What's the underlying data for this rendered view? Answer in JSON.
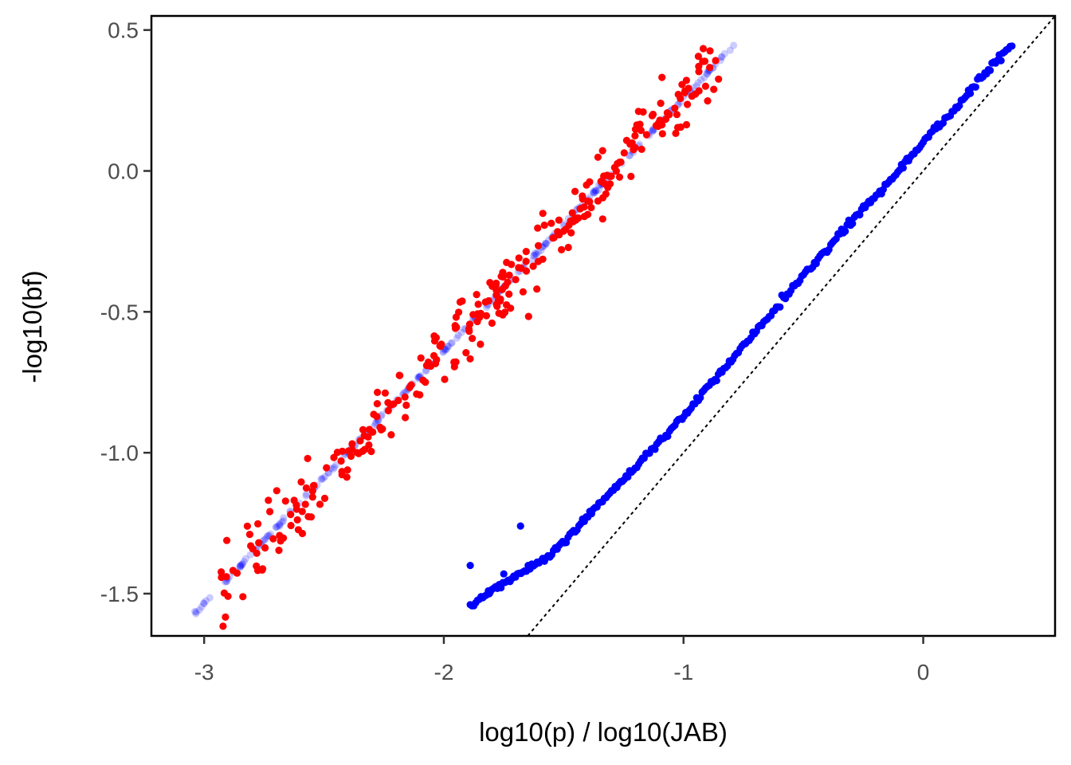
{
  "chart_data": {
    "type": "scatter",
    "xlabel": "log10(p) / log10(JAB)",
    "ylabel": "-log10(bf)",
    "xlim": [
      -3.22,
      0.55
    ],
    "ylim": [
      -1.65,
      0.55
    ],
    "xticks": [
      -3,
      -2,
      -1,
      0
    ],
    "xtick_labels": [
      "-3",
      "-2",
      "-1",
      "0"
    ],
    "yticks": [
      -1.5,
      -1.0,
      -0.5,
      0.0,
      0.5
    ],
    "ytick_labels": [
      "-1.5",
      "-1.0",
      "-0.5",
      "0.0",
      "0.5"
    ],
    "grid": false,
    "legend": "none",
    "reference_line": {
      "kind": "y = x",
      "style": "dotted",
      "color": "#000000"
    },
    "series": [
      {
        "id": "red",
        "color": "#ff0000",
        "opacity": 1.0,
        "model": {
          "type": "linear_with_noise",
          "slope": 0.897,
          "intercept": 1.155,
          "x_range": [
            -2.93,
            -0.84
          ],
          "count": 300,
          "noise_sd_y": 0.06,
          "seed": 7
        }
      },
      {
        "id": "blue-faint",
        "color": "#0000ff",
        "opacity": 0.2,
        "model": {
          "type": "linear",
          "slope": 0.897,
          "intercept": 1.155,
          "x_range": [
            -3.05,
            -0.79
          ],
          "count": 260,
          "noise_sd_y": 0.003,
          "seed": 11
        }
      },
      {
        "id": "blue",
        "color": "#0000ff",
        "opacity": 1.0,
        "model": {
          "type": "piecewise_linear",
          "knots_x": [
            -1.89,
            -1.55,
            -1.0,
            -0.5,
            0.0,
            0.37
          ],
          "knots_y": [
            -1.54,
            -1.36,
            -0.87,
            -0.37,
            0.1,
            0.45
          ],
          "count": 300,
          "noise_sd_y": 0.006,
          "seed": 5
        },
        "points": [
          [
            -1.89,
            -1.4
          ],
          [
            -1.68,
            -1.26
          ],
          [
            -1.81,
            -1.5
          ],
          [
            -1.75,
            -1.43
          ]
        ]
      }
    ]
  }
}
